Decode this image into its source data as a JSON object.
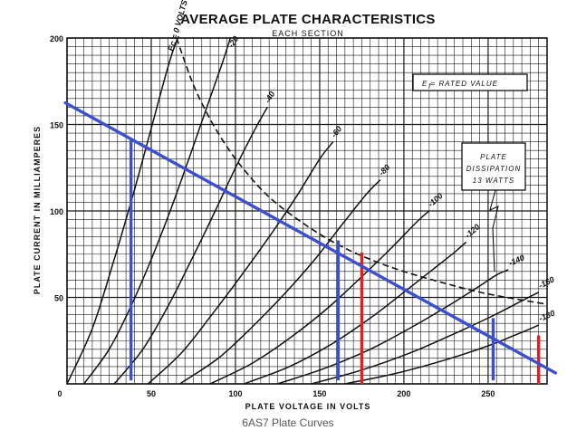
{
  "chart_data": {
    "type": "line",
    "title": "AVERAGE PLATE CHARACTERISTICS",
    "subtitle": "EACH SECTION",
    "xlabel": "PLATE VOLTAGE IN VOLTS",
    "ylabel": "PLATE CURRENT IN MILLIAMPERES",
    "xlim": [
      0,
      285
    ],
    "ylim": [
      0,
      200
    ],
    "grid": true,
    "x_ticks": [
      "0",
      "50",
      "100",
      "150",
      "200",
      "250"
    ],
    "y_ticks": [
      "50",
      "100",
      "150",
      "200"
    ],
    "caption": "6AS7 Plate Curves",
    "annotations": {
      "filament": "E  = RATED VALUE",
      "dissipation": [
        "PLATE",
        "DISSIPATION",
        "13 WATTS"
      ]
    },
    "curves": [
      {
        "label": "Ec = 0 VOLTS",
        "x": [
          0,
          15,
          28,
          40,
          52,
          62,
          70
        ],
        "y": [
          0,
          32,
          72,
          112,
          155,
          190,
          210
        ]
      },
      {
        "label": "-20",
        "x": [
          10,
          25,
          38,
          50,
          62,
          73,
          83,
          92,
          97
        ],
        "y": [
          0,
          20,
          45,
          72,
          102,
          132,
          160,
          185,
          200
        ]
      },
      {
        "label": "-40",
        "x": [
          28,
          45,
          60,
          74,
          88,
          100,
          112,
          119
        ],
        "y": [
          0,
          20,
          45,
          72,
          100,
          125,
          148,
          160
        ]
      },
      {
        "label": "-60",
        "x": [
          48,
          68,
          86,
          103,
          120,
          136,
          150,
          158
        ],
        "y": [
          0,
          18,
          40,
          62,
          85,
          108,
          130,
          140
        ]
      },
      {
        "label": "-80",
        "x": [
          67,
          90,
          110,
          130,
          148,
          164,
          178,
          186
        ],
        "y": [
          0,
          15,
          33,
          53,
          73,
          93,
          110,
          118
        ]
      },
      {
        "label": "-100",
        "x": [
          85,
          110,
          133,
          155,
          175,
          193,
          208,
          215
        ],
        "y": [
          0,
          12,
          27,
          44,
          62,
          79,
          94,
          100
        ]
      },
      {
        "label": "-120",
        "x": [
          105,
          132,
          157,
          180,
          200,
          217,
          230,
          237
        ],
        "y": [
          0,
          10,
          23,
          38,
          53,
          66,
          76,
          82
        ]
      },
      {
        "label": "-140",
        "x": [
          125,
          153,
          180,
          205,
          226,
          244,
          255,
          262
        ],
        "y": [
          0,
          9,
          20,
          33,
          45,
          56,
          63,
          66
        ]
      },
      {
        "label": "-160",
        "x": [
          145,
          175,
          204,
          230,
          252,
          268,
          280
        ],
        "y": [
          0,
          8,
          18,
          29,
          39,
          47,
          53
        ]
      },
      {
        "label": "-180",
        "x": [
          165,
          195,
          225,
          250,
          268,
          280
        ],
        "y": [
          0,
          6,
          14,
          22,
          29,
          34
        ]
      }
    ],
    "dissipation_curve": {
      "x": [
        65,
        75,
        85,
        95,
        105,
        120,
        140,
        160,
        180,
        200,
        225,
        250,
        285
      ],
      "y": [
        200,
        173,
        153,
        137,
        124,
        108,
        93,
        81,
        72,
        65,
        58,
        52,
        46
      ]
    },
    "load_line": {
      "x": [
        0,
        285
      ],
      "y": [
        162,
        9
      ]
    },
    "markers": [
      {
        "x": 38,
        "y_from": 2,
        "y_to": 141,
        "color": "#3a50d0"
      },
      {
        "x": 161,
        "y_from": 2,
        "y_to": 83,
        "color": "#3a50d0"
      },
      {
        "x": 253,
        "y_from": 2,
        "y_to": 38,
        "color": "#3a50d0"
      },
      {
        "x": 175,
        "y_from": 0,
        "y_to": 76,
        "color": "#e02020"
      },
      {
        "x": 280,
        "y_from": 0,
        "y_to": 28,
        "color": "#e02020"
      }
    ],
    "colors": {
      "grid": "#1a1a1a",
      "curve": "#111111",
      "load_line": "#3a50d0",
      "blue_marker": "#3a50d0",
      "red_marker": "#e02020"
    }
  }
}
